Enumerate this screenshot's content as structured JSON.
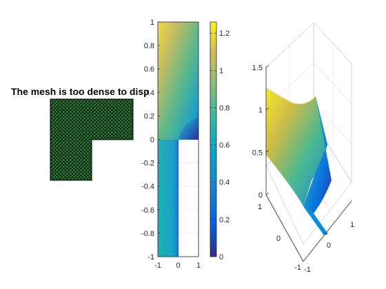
{
  "chart_data": [
    {
      "type": "mesh",
      "title": "The mesh is too dense to disp",
      "description_of_region": "L-shaped domain",
      "domain_outline": [
        [
          -1,
          1
        ],
        [
          1,
          1
        ],
        [
          1,
          0
        ],
        [
          0,
          0
        ],
        [
          0,
          -1
        ],
        [
          -1,
          -1
        ]
      ],
      "colors": {
        "background": "#000000",
        "edges": "#3cb44b"
      }
    },
    {
      "type": "heatmap",
      "xticks": [
        "-1",
        "0",
        "1"
      ],
      "yticks": [
        "-1",
        "-0.8",
        "-0.6",
        "-0.4",
        "-0.2",
        "0",
        "0.2",
        "0.4",
        "0.6",
        "0.8",
        "1"
      ],
      "xlim": [
        -1,
        1
      ],
      "ylim": [
        -1,
        1
      ],
      "colorbar": {
        "ticks": [
          "0",
          "0.2",
          "0.4",
          "0.6",
          "0.8",
          "1",
          "1.2"
        ],
        "range": [
          0,
          1.26
        ],
        "colormap": "parula"
      },
      "domain": "L-shaped, quadrant x>0, y<0 removed"
    },
    {
      "type": "surface",
      "zticks": [
        "0",
        "0.5",
        "1",
        "1.5"
      ],
      "xticks": [
        "-1",
        "0",
        "1"
      ],
      "yticks": [
        "-1",
        "0",
        "1"
      ],
      "zlim": [
        0,
        1.5
      ],
      "colormap": "parula"
    }
  ]
}
